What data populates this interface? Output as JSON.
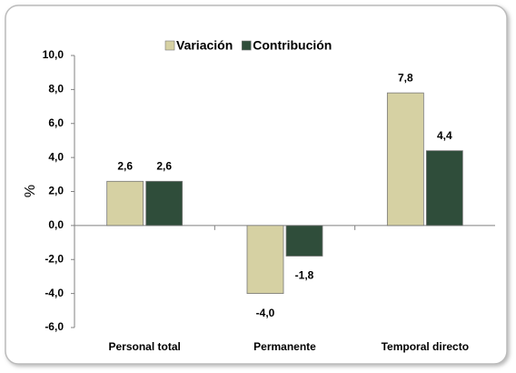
{
  "chart_data": {
    "type": "bar",
    "categories": [
      "Personal total",
      "Permanente",
      "Temporal directo"
    ],
    "series": [
      {
        "name": "Variación",
        "color": "#d6d1a3",
        "values": [
          2.6,
          -4.0,
          7.8
        ],
        "value_labels": [
          "2,6",
          "-4,0",
          "7,8"
        ]
      },
      {
        "name": "Contribución",
        "color": "#2f4d3a",
        "values": [
          2.6,
          -1.8,
          4.4
        ],
        "value_labels": [
          "2,6",
          "-1,8",
          "4,4"
        ]
      }
    ],
    "y_label": "%",
    "ylim": [
      -6,
      10
    ],
    "yticks": [
      {
        "value": -6,
        "label": "-6,0"
      },
      {
        "value": -4,
        "label": "-4,0"
      },
      {
        "value": -2,
        "label": "-2,0"
      },
      {
        "value": 0,
        "label": "0,0"
      },
      {
        "value": 2,
        "label": "2,0"
      },
      {
        "value": 4,
        "label": "4,0"
      },
      {
        "value": 6,
        "label": "6,0"
      },
      {
        "value": 8,
        "label": "8,0"
      },
      {
        "value": 10,
        "label": "10,0"
      }
    ],
    "legend": "top"
  }
}
